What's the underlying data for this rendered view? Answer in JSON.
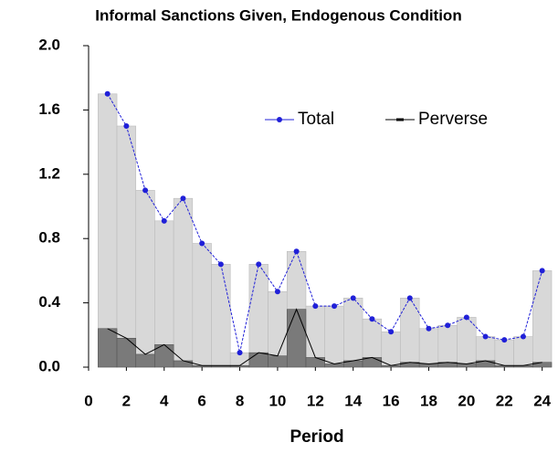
{
  "chart_data": {
    "type": "line",
    "title": "Informal Sanctions Given, Endogenous Condition",
    "x_label": "Period",
    "x": [
      1,
      2,
      3,
      4,
      5,
      6,
      7,
      8,
      9,
      10,
      11,
      12,
      13,
      14,
      15,
      16,
      17,
      18,
      19,
      20,
      21,
      22,
      23,
      24
    ],
    "series": [
      {
        "name": "Total",
        "color": "#2020d8",
        "fill": "#d8d8d8",
        "values": [
          1.7,
          1.5,
          1.1,
          0.91,
          1.05,
          0.77,
          0.64,
          0.09,
          0.64,
          0.47,
          0.72,
          0.38,
          0.38,
          0.43,
          0.3,
          0.22,
          0.43,
          0.24,
          0.26,
          0.31,
          0.19,
          0.17,
          0.19,
          0.6
        ]
      },
      {
        "name": "Perverse",
        "color": "#000000",
        "fill": "#7a7a7a",
        "values": [
          0.24,
          0.18,
          0.08,
          0.14,
          0.04,
          0.01,
          0.01,
          0.01,
          0.09,
          0.07,
          0.36,
          0.06,
          0.02,
          0.04,
          0.06,
          0.01,
          0.03,
          0.02,
          0.03,
          0.02,
          0.04,
          0.01,
          0.01,
          0.03
        ]
      }
    ],
    "xlim": [
      0,
      24.5
    ],
    "xticks": [
      0,
      2,
      4,
      6,
      8,
      10,
      12,
      14,
      16,
      18,
      20,
      22,
      24
    ],
    "ylim": [
      0,
      2
    ],
    "yticks": [
      {
        "value": 0,
        "label": "0.0"
      },
      0.4,
      0.8,
      1.2,
      1.6,
      {
        "value": 2,
        "label": "2.0"
      }
    ],
    "legend": "upper right"
  }
}
